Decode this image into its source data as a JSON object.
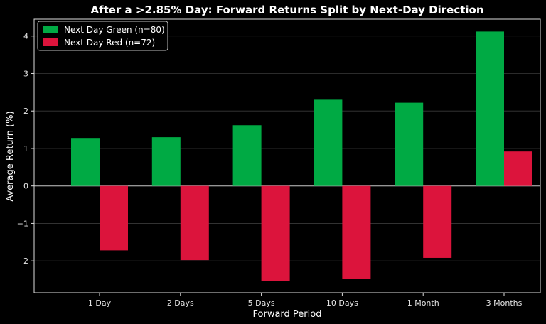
{
  "chart_data": {
    "type": "bar",
    "title": "After a >2.85% Day: Forward Returns Split by Next-Day Direction",
    "xlabel": "Forward Period",
    "ylabel": "Average Return (%)",
    "categories": [
      "1 Day",
      "2 Days",
      "5 Days",
      "10 Days",
      "1 Month",
      "3 Months"
    ],
    "series": [
      {
        "name": "Next Day Green (n=80)",
        "color": "#00aa44",
        "values": [
          1.28,
          1.3,
          1.62,
          2.3,
          2.22,
          4.12
        ]
      },
      {
        "name": "Next Day Red (n=72)",
        "color": "#dc143c",
        "values": [
          -1.72,
          -1.98,
          -2.53,
          -2.48,
          -1.92,
          0.92
        ]
      }
    ],
    "ylim": [
      -2.85,
      4.45
    ],
    "yticks": [
      -2,
      -1,
      0,
      1,
      2,
      3,
      4
    ],
    "ytick_labels": [
      "−2",
      "−1",
      "0",
      "1",
      "2",
      "3",
      "4"
    ],
    "grid": true,
    "legend_position": "top-left",
    "background": "#000000"
  }
}
